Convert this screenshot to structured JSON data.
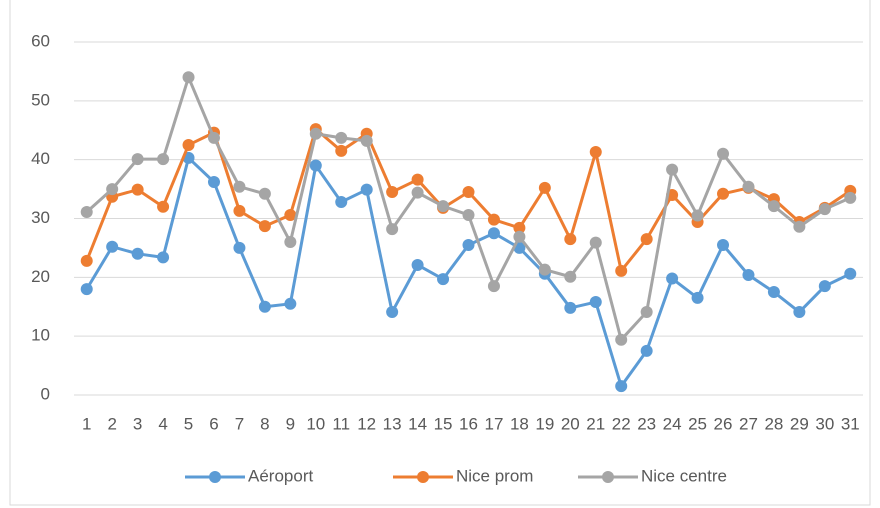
{
  "chart_data": {
    "type": "line",
    "categories": [
      "1",
      "2",
      "3",
      "4",
      "5",
      "6",
      "7",
      "8",
      "9",
      "10",
      "11",
      "12",
      "13",
      "14",
      "15",
      "16",
      "17",
      "18",
      "19",
      "20",
      "21",
      "22",
      "23",
      "24",
      "25",
      "26",
      "27",
      "28",
      "29",
      "30",
      "31"
    ],
    "series": [
      {
        "name": "Aéroport",
        "color": "#5b9bd5",
        "values": [
          18,
          25.2,
          24,
          23.4,
          40.3,
          36.2,
          25,
          15,
          15.5,
          39,
          32.8,
          34.9,
          14.1,
          22.1,
          19.7,
          25.5,
          27.5,
          25,
          20.6,
          14.8,
          15.8,
          1.5,
          7.5,
          19.8,
          16.5,
          25.5,
          20.4,
          17.5,
          14.1,
          18.5,
          20.6
        ]
      },
      {
        "name": "Nice prom",
        "color": "#ed7d31",
        "values": [
          22.8,
          33.7,
          34.9,
          32,
          42.5,
          44.6,
          31.3,
          28.7,
          30.6,
          45.2,
          41.5,
          44.4,
          34.5,
          36.6,
          31.8,
          34.5,
          29.8,
          28.4,
          35.2,
          26.5,
          41.3,
          21.1,
          26.5,
          34,
          29.4,
          34.2,
          35.2,
          33.3,
          29.4,
          31.8,
          34.7
        ]
      },
      {
        "name": "Nice centre",
        "color": "#a5a5a5",
        "values": [
          31.1,
          35,
          40.1,
          40.1,
          54,
          43.7,
          35.4,
          34.2,
          26,
          44.4,
          43.7,
          43.2,
          28.2,
          34.4,
          32.1,
          30.6,
          18.5,
          26.9,
          21.3,
          20.1,
          25.9,
          9.4,
          14.1,
          38.3,
          30.5,
          41,
          35.4,
          32.1,
          28.6,
          31.6,
          33.5
        ]
      }
    ],
    "ylim": [
      0,
      60
    ],
    "yticks": [
      0,
      10,
      20,
      30,
      40,
      50,
      60
    ],
    "grid": true,
    "legend": "bottom"
  }
}
